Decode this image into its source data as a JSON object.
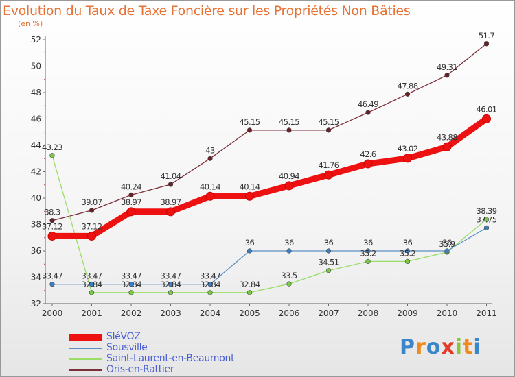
{
  "title": "Evolution du Taux de Taxe Foncière sur les Propriétés Non Bâties",
  "subtitle": "(en %)",
  "logo": {
    "text": "Proxiti",
    "colors": [
      "#3b86c8",
      "#f08a1c",
      "#3b86c8",
      "#e33b2b",
      "#8cc63f",
      "#f08a1c",
      "#3b86c8"
    ]
  },
  "chart_data": {
    "type": "line",
    "x": [
      "2000",
      "2001",
      "2002",
      "2003",
      "2004",
      "2005",
      "2006",
      "2007",
      "2008",
      "2009",
      "2010",
      "2011"
    ],
    "ylim": [
      32,
      52
    ],
    "yticks": [
      32,
      34,
      36,
      38,
      40,
      42,
      44,
      46,
      48,
      50,
      52
    ],
    "grid": false,
    "legend": "bottom-left",
    "series": [
      {
        "name": "SléVOZ",
        "color": "#ee1111",
        "thick": true,
        "values": [
          37.12,
          37.12,
          38.97,
          38.97,
          40.14,
          40.14,
          40.94,
          41.76,
          42.6,
          43.02,
          43.88,
          46.01
        ],
        "labels": [
          "37.12",
          "37.12",
          "38.97",
          "38.97",
          "40.14",
          "40.14",
          "40.94",
          "41.76",
          "42.6",
          "43.02",
          "43.88",
          "46.01"
        ]
      },
      {
        "name": "Sousville",
        "color": "#5b8fc4",
        "point": "#3b7fc4",
        "values": [
          33.47,
          33.47,
          33.47,
          33.47,
          33.47,
          36,
          36,
          36,
          36,
          36,
          36,
          37.75
        ],
        "labels": [
          "33.47",
          "33.47",
          "33.47",
          "33.47",
          "33.47",
          "36",
          "36",
          "36",
          "36",
          "36",
          "36",
          "37.75"
        ]
      },
      {
        "name": "Saint-Laurent-en-Beaumont",
        "color": "#99dd66",
        "point": "#77cc44",
        "values": [
          43.23,
          32.84,
          32.84,
          32.84,
          32.84,
          32.84,
          33.5,
          34.51,
          35.2,
          35.2,
          35.9,
          38.39
        ],
        "labels": [
          "43.23",
          "32.84",
          "32.84",
          "32.84",
          "32.84",
          "32.84",
          "33.5",
          "34.51",
          "35.2",
          "35.2",
          "35.9",
          "38.39"
        ]
      },
      {
        "name": "Oris-en-Rattier",
        "color": "#7a3038",
        "point": "#6a2028",
        "values": [
          38.3,
          39.07,
          40.24,
          41.04,
          43,
          45.15,
          45.15,
          45.15,
          46.49,
          47.88,
          49.31,
          51.7
        ],
        "labels": [
          "38.3",
          "39.07",
          "40.24",
          "41.04",
          "43",
          "45.15",
          "45.15",
          "45.15",
          "46.49",
          "47.88",
          "49.31",
          "51.7"
        ]
      }
    ]
  }
}
